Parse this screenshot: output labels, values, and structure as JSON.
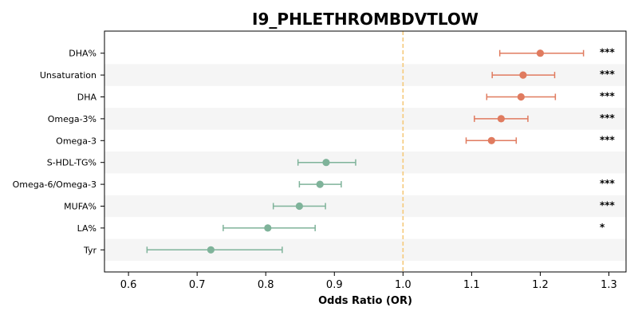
{
  "chart_data": {
    "type": "forest",
    "title": "I9_PHLETHROMBDVTLOW",
    "xlabel": "Odds Ratio (OR)",
    "xlim": [
      0.565,
      1.325
    ],
    "xticks": [
      "0.6",
      "0.7",
      "0.8",
      "0.9",
      "1.0",
      "1.1",
      "1.2",
      "1.3"
    ],
    "xtick_values": [
      0.6,
      0.7,
      0.8,
      0.9,
      1.0,
      1.1,
      1.2,
      1.3
    ],
    "reference_line": 1.0,
    "colors": {
      "positive": "#e07b5f",
      "negative": "#7fb39a",
      "reference": "#f5c97a",
      "band": "#f5f5f5"
    },
    "rows": [
      {
        "label": "DHA%",
        "or": 1.2,
        "lo": 1.141,
        "hi": 1.263,
        "sig": "***"
      },
      {
        "label": "Unsaturation",
        "or": 1.175,
        "lo": 1.13,
        "hi": 1.221,
        "sig": "***"
      },
      {
        "label": "DHA",
        "or": 1.172,
        "lo": 1.122,
        "hi": 1.222,
        "sig": "***"
      },
      {
        "label": "Omega-3%",
        "or": 1.143,
        "lo": 1.104,
        "hi": 1.182,
        "sig": "***"
      },
      {
        "label": "Omega-3",
        "or": 1.129,
        "lo": 1.092,
        "hi": 1.165,
        "sig": "***"
      },
      {
        "label": "S-HDL-TG%",
        "or": 0.888,
        "lo": 0.847,
        "hi": 0.931,
        "sig": ""
      },
      {
        "label": "Omega-6/Omega-3",
        "or": 0.879,
        "lo": 0.849,
        "hi": 0.91,
        "sig": "***"
      },
      {
        "label": "MUFA%",
        "or": 0.849,
        "lo": 0.811,
        "hi": 0.887,
        "sig": "***"
      },
      {
        "label": "LA%",
        "or": 0.803,
        "lo": 0.738,
        "hi": 0.872,
        "sig": "*"
      },
      {
        "label": "Tyr",
        "or": 0.72,
        "lo": 0.627,
        "hi": 0.824,
        "sig": ""
      }
    ]
  }
}
